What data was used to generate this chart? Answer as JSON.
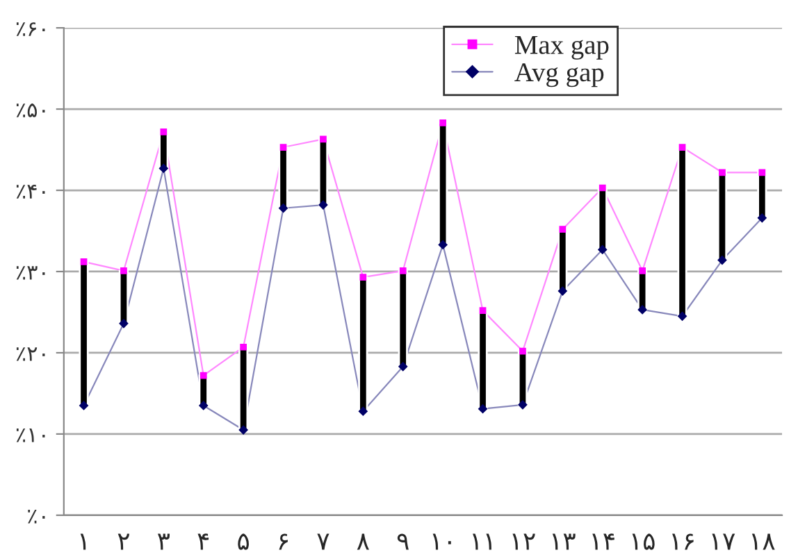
{
  "chart_data": {
    "type": "line",
    "categories": [
      "۱",
      "۲",
      "۳",
      "۴",
      "۵",
      "۶",
      "۷",
      "۸",
      "۹",
      "۱۰",
      "۱۱",
      "۱۲",
      "۱۳",
      "۱۴",
      "۱۵",
      "۱۶",
      "۱۷",
      "۱۸"
    ],
    "series": [
      {
        "type": "bar",
        "color": "#000000",
        "base": [
          13.5,
          23.6,
          42.7,
          13.5,
          10.5,
          37.8,
          38.2,
          12.8,
          18.3,
          33.3,
          13.1,
          13.6,
          27.6,
          32.7,
          25.3,
          24.5,
          31.4,
          36.6
        ],
        "values": [
          17.7,
          6.5,
          4.5,
          3.7,
          10.2,
          7.5,
          8.1,
          16.5,
          11.8,
          15.0,
          12.1,
          6.6,
          7.6,
          7.6,
          4.8,
          20.8,
          10.8,
          5.6
        ]
      },
      {
        "name": "Max gap",
        "color": "#ff00ff",
        "marker": "square",
        "values": [
          31.2,
          30.1,
          47.2,
          17.2,
          20.7,
          45.3,
          46.3,
          29.3,
          30.1,
          48.3,
          25.2,
          20.2,
          35.2,
          40.3,
          30.1,
          45.3,
          42.2,
          42.2
        ]
      },
      {
        "name": "Avg gap",
        "color": "#000066",
        "marker": "diamond",
        "values": [
          13.5,
          23.6,
          42.7,
          13.5,
          10.5,
          37.8,
          38.2,
          12.8,
          18.3,
          33.3,
          13.1,
          13.6,
          27.6,
          32.7,
          25.3,
          24.5,
          31.4,
          36.6
        ]
      }
    ],
    "ylim": [
      0,
      60
    ],
    "yticks": [
      {
        "value": 0,
        "label": "٪۰"
      },
      {
        "value": 10,
        "label": "٪۱۰"
      },
      {
        "value": 20,
        "label": "٪۲۰"
      },
      {
        "value": 30,
        "label": "٪۳۰"
      },
      {
        "value": 40,
        "label": "٪۴۰"
      },
      {
        "value": 50,
        "label": "٪۵۰"
      },
      {
        "value": 60,
        "label": "٪۶۰"
      }
    ],
    "grid": "y",
    "legend": "top right"
  }
}
